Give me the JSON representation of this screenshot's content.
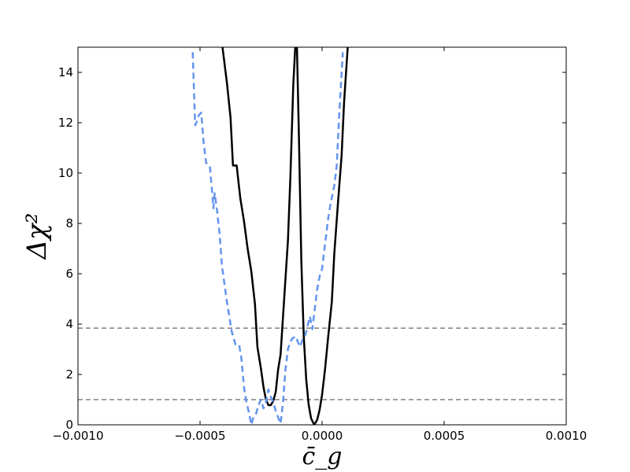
{
  "chart_data": {
    "type": "line",
    "xlabel": "c̄_g",
    "ylabel": "Δχ²",
    "xlim": [
      -0.001,
      0.001
    ],
    "ylim": [
      0,
      15
    ],
    "xticks": [
      {
        "value": -0.001,
        "label": "−0.0010"
      },
      {
        "value": -0.0005,
        "label": "−0.0005"
      },
      {
        "value": 0.0,
        "label": "0.0000"
      },
      {
        "value": 0.0005,
        "label": "0.0005"
      },
      {
        "value": 0.001,
        "label": "0.0010"
      }
    ],
    "yticks": [
      {
        "value": 0,
        "label": "0"
      },
      {
        "value": 2,
        "label": "2"
      },
      {
        "value": 4,
        "label": "4"
      },
      {
        "value": 6,
        "label": "6"
      },
      {
        "value": 8,
        "label": "8"
      },
      {
        "value": 10,
        "label": "10"
      },
      {
        "value": 12,
        "label": "12"
      },
      {
        "value": 14,
        "label": "14"
      }
    ],
    "grid": false,
    "legend": "none",
    "hlines": [
      {
        "y": 3.84,
        "color": "#808080",
        "style": "dashed"
      },
      {
        "y": 1.0,
        "color": "#808080",
        "style": "dashed"
      }
    ],
    "series": [
      {
        "color": "#000000",
        "style": "solid",
        "points": [
          [
            -0.000408,
            15.0
          ],
          [
            -0.00039,
            13.6
          ],
          [
            -0.000375,
            12.2
          ],
          [
            -0.000365,
            10.3
          ],
          [
            -0.00035,
            10.3
          ],
          [
            -0.000335,
            9.0
          ],
          [
            -0.00032,
            8.1
          ],
          [
            -0.000305,
            7.0
          ],
          [
            -0.00029,
            6.1
          ],
          [
            -0.000275,
            4.8
          ],
          [
            -0.000265,
            3.1
          ],
          [
            -0.00025,
            2.2
          ],
          [
            -0.00024,
            1.5
          ],
          [
            -0.00023,
            1.0
          ],
          [
            -0.00022,
            0.78
          ],
          [
            -0.00021,
            0.78
          ],
          [
            -0.0002,
            0.95
          ],
          [
            -0.00019,
            1.3
          ],
          [
            -0.00018,
            2.2
          ],
          [
            -0.00017,
            2.8
          ],
          [
            -0.00016,
            4.3
          ],
          [
            -0.00015,
            5.8
          ],
          [
            -0.00014,
            7.3
          ],
          [
            -0.00013,
            9.8
          ],
          [
            -0.000118,
            13.5
          ],
          [
            -0.00011,
            15.0
          ]
        ]
      },
      {
        "color": "#000000",
        "style": "solid",
        "points": [
          [
            -0.000103,
            15.0
          ],
          [
            -9.5e-05,
            11.5
          ],
          [
            -8.5e-05,
            6.5
          ],
          [
            -7.5e-05,
            3.5
          ],
          [
            -6.5e-05,
            1.8
          ],
          [
            -5.5e-05,
            0.8
          ],
          [
            -4.5e-05,
            0.25
          ],
          [
            -3.2e-05,
            0.0
          ],
          [
            -2e-05,
            0.2
          ],
          [
            -1e-05,
            0.6
          ],
          [
            0.0,
            1.2
          ],
          [
            1.2e-05,
            2.2
          ],
          [
            2.5e-05,
            3.5
          ],
          [
            4e-05,
            4.9
          ],
          [
            5e-05,
            6.8
          ],
          [
            6.5e-05,
            8.8
          ],
          [
            8e-05,
            10.7
          ],
          [
            9e-05,
            12.8
          ],
          [
            0.000105,
            15.0
          ]
        ]
      },
      {
        "color": "#6495ed",
        "style": "dashed",
        "points": [
          [
            -0.00053,
            14.8
          ],
          [
            -0.00052,
            11.9
          ],
          [
            -0.000515,
            12.0
          ],
          [
            -0.000505,
            12.3
          ],
          [
            -0.000495,
            12.4
          ],
          [
            -0.000485,
            11.2
          ],
          [
            -0.000475,
            10.4
          ],
          [
            -0.00046,
            10.3
          ],
          [
            -0.00045,
            9.2
          ],
          [
            -0.000445,
            8.6
          ],
          [
            -0.00044,
            9.2
          ],
          [
            -0.00043,
            8.5
          ],
          [
            -0.00042,
            7.6
          ],
          [
            -0.00041,
            6.3
          ],
          [
            -0.0004,
            5.6
          ],
          [
            -0.00039,
            4.9
          ],
          [
            -0.00038,
            4.3
          ],
          [
            -0.00037,
            3.7
          ],
          [
            -0.000355,
            3.2
          ],
          [
            -0.00034,
            3.2
          ],
          [
            -0.00033,
            2.6
          ],
          [
            -0.00032,
            1.5
          ],
          [
            -0.00031,
            0.9
          ],
          [
            -0.0003,
            0.5
          ],
          [
            -0.00029,
            0.0
          ],
          [
            -0.00028,
            0.35
          ],
          [
            -0.00027,
            0.45
          ],
          [
            -0.00026,
            0.8
          ],
          [
            -0.00025,
            1.0
          ],
          [
            -0.00024,
            0.65
          ],
          [
            -0.00023,
            0.9
          ],
          [
            -0.00022,
            1.4
          ],
          [
            -0.00021,
            1.1
          ],
          [
            -0.0002,
            0.9
          ],
          [
            -0.00019,
            0.55
          ],
          [
            -0.00018,
            0.3
          ],
          [
            -0.00017,
            0.05
          ],
          [
            -0.00016,
            0.9
          ],
          [
            -0.00015,
            2.2
          ],
          [
            -0.00014,
            3.0
          ],
          [
            -0.00013,
            3.3
          ],
          [
            -0.00012,
            3.45
          ],
          [
            -0.000105,
            3.5
          ],
          [
            -0.0001,
            3.3
          ],
          [
            -9e-05,
            3.1
          ],
          [
            -8e-05,
            3.4
          ],
          [
            -7e-05,
            3.5
          ],
          [
            -6e-05,
            3.9
          ],
          [
            -5e-05,
            4.3
          ],
          [
            -4e-05,
            3.8
          ],
          [
            -3e-05,
            4.6
          ],
          [
            -2e-05,
            5.4
          ],
          [
            -1e-05,
            5.9
          ],
          [
            0.0,
            6.2
          ],
          [
            1.5e-05,
            7.4
          ],
          [
            2.5e-05,
            8.2
          ],
          [
            3.5e-05,
            8.8
          ],
          [
            5e-05,
            9.5
          ],
          [
            6e-05,
            10.3
          ],
          [
            7e-05,
            12.3
          ],
          [
            8.5e-05,
            14.8
          ]
        ]
      }
    ]
  }
}
